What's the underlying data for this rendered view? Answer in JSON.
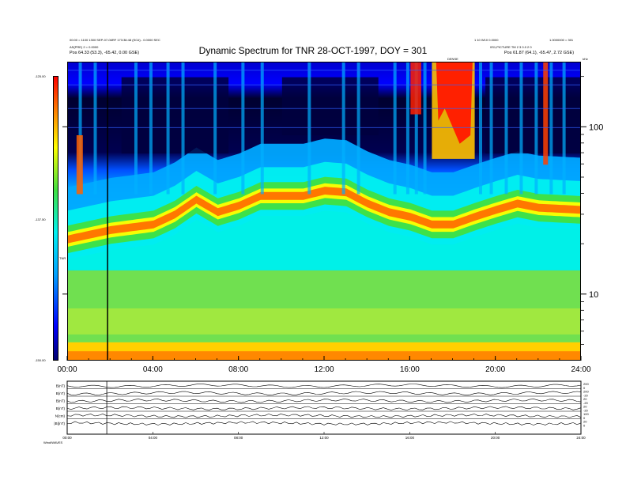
{
  "header": {
    "title": "Dynamic Spectrum for TNR 28-OCT-1997, DOY = 301",
    "left_line1": "00:00 = 1100 1300 SEP-07-06RF 173:36:48 (SC#) - 0.0000 SEC",
    "left_line2": "AS(PRE) 2 = 0.0000",
    "left_line3": "Pos    64.33 (53.3), -65.42, 0.00 GSE)",
    "right_line1": "1 10 W10 0.0000",
    "right_line1b": "1.0000000 = 301",
    "right_line2": "0S1,PICTURE TM 2 3 0.0 2 0",
    "right_line3": "Pos    61.87 (64.1), -65.47, 2.72 GSE)",
    "right_flag": "DENSE",
    "khz_label": "kHz",
    "colorbar_label": "TNR"
  },
  "colorbar": {
    "ticks": [
      "-125.00",
      "-137.50",
      "-150.00"
    ],
    "colors": [
      "#ff0000",
      "#ffff00",
      "#00f0f0",
      "#0000ff",
      "#000070"
    ]
  },
  "chart_data": {
    "type": "heatmap",
    "title": "Dynamic Spectrum for TNR 28-OCT-1997, DOY = 301",
    "x_tick_labels": [
      "00:00",
      "04:00",
      "08:00",
      "12:00",
      "16:00",
      "20:00",
      "24:00"
    ],
    "x_range_hours": [
      0,
      24
    ],
    "y_scale": "log",
    "y_unit": "kHz",
    "y_tick_labels": [
      "100",
      "10"
    ],
    "y_range_khz": [
      4,
      245
    ],
    "colorbar_range": [
      -150.0,
      -125.0
    ],
    "marker_time_hours": 1.85,
    "features": {
      "plasma_line_khz": [
        {
          "t": 0,
          "f": 22
        },
        {
          "t": 2,
          "f": 25
        },
        {
          "t": 4,
          "f": 27
        },
        {
          "t": 5,
          "f": 31
        },
        {
          "t": 6,
          "f": 38
        },
        {
          "t": 7,
          "f": 32
        },
        {
          "t": 8,
          "f": 35
        },
        {
          "t": 9,
          "f": 40
        },
        {
          "t": 11,
          "f": 40
        },
        {
          "t": 12,
          "f": 43
        },
        {
          "t": 13,
          "f": 42
        },
        {
          "t": 14,
          "f": 36
        },
        {
          "t": 15,
          "f": 32
        },
        {
          "t": 16,
          "f": 30
        },
        {
          "t": 17,
          "f": 27
        },
        {
          "t": 18,
          "f": 27
        },
        {
          "t": 19,
          "f": 30
        },
        {
          "t": 20,
          "f": 33
        },
        {
          "t": 21,
          "f": 36
        },
        {
          "t": 22,
          "f": 34
        },
        {
          "t": 24,
          "f": 33
        }
      ],
      "burst_region": {
        "t_start": 17.0,
        "t_end": 19.0,
        "f_min": 65,
        "f_max": 245
      }
    }
  },
  "lower_panel": {
    "rows": [
      {
        "label": "B(nT)",
        "right": [
          "200",
          "0"
        ]
      },
      {
        "label": "B(nT)",
        "right": [
          "200",
          "-20"
        ]
      },
      {
        "label": "B(nT)",
        "right": [
          "20",
          "-20"
        ]
      },
      {
        "label": "B(nT)",
        "right": [
          "20",
          "-20"
        ]
      },
      {
        "label": "N(cm)",
        "right": [
          "100",
          "0"
        ]
      },
      {
        "label": "|B|(nT)",
        "right": [
          "20",
          "0"
        ]
      }
    ],
    "x_tick_labels": [
      "00:00",
      "04:00",
      "08:00",
      "12:00",
      "16:00",
      "20:00",
      "24:00"
    ],
    "footer": "Wind/WAVES"
  }
}
